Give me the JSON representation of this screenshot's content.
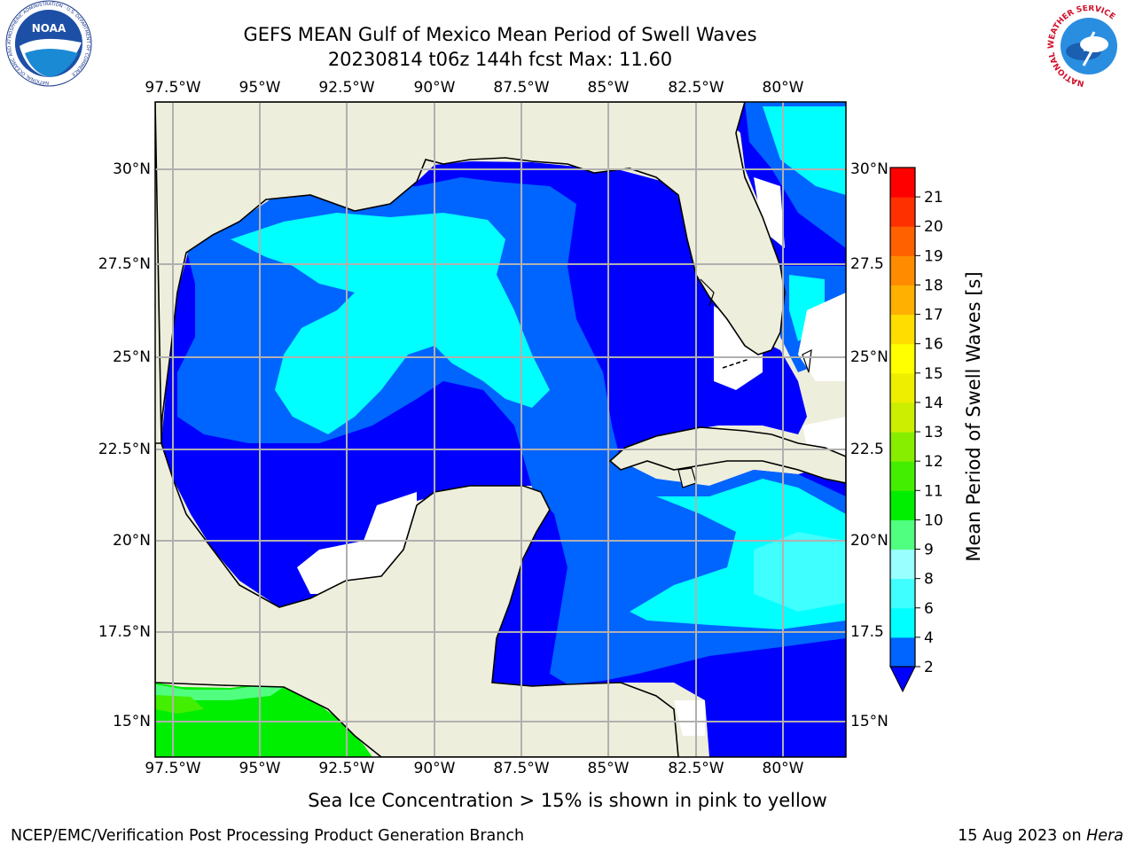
{
  "title": {
    "line1": "GEFS MEAN Gulf of Mexico Mean Period of Swell Waves",
    "line2": "20230814 t06z 144h fcst   Max: 11.60"
  },
  "map": {
    "lon_ticks": [
      "97.5°W",
      "95°W",
      "92.5°W",
      "90°W",
      "87.5°W",
      "85°W",
      "82.5°W",
      "80°W"
    ],
    "lat_ticks_left": [
      "30°N",
      "27.5°N",
      "25°N",
      "22.5°N",
      "20°N",
      "17.5°N",
      "15°N"
    ],
    "lat_ticks_right": [
      "30°N",
      "27.5",
      "25°N",
      "22.5",
      "20°N",
      "17.5",
      "15°N"
    ],
    "land_color": "#eeeedc",
    "grid_color": "#b0b0b0"
  },
  "colorbar": {
    "label": "Mean Period of Swell Waves [s]",
    "ticks": [
      "2",
      "4",
      "6",
      "8",
      "9",
      "10",
      "11",
      "12",
      "13",
      "14",
      "15",
      "16",
      "17",
      "18",
      "19",
      "20",
      "21"
    ],
    "colors": [
      "#0064ff",
      "#00ffff",
      "#40ffff",
      "#99ffff",
      "#50ff80",
      "#00ee00",
      "#44ee00",
      "#88ee00",
      "#ccee00",
      "#eeee00",
      "#ffff00",
      "#ffdd00",
      "#ffb000",
      "#ff8c00",
      "#ff6000",
      "#ff3000",
      "#ff0000"
    ],
    "under_color": "#0000ff"
  },
  "caption": "Sea Ice Concentration > 15% is shown in pink to yellow",
  "footer": {
    "left": "NCEP/EMC/Verification Post Processing Product Generation Branch",
    "right_date": "15 Aug 2023 on ",
    "right_host": "Hera"
  },
  "logos": {
    "noaa_text": "NOAA",
    "noaa_ring": "NATIONAL OCEANIC AND ATMOSPHERIC ADMINISTRATION · U.S. DEPARTMENT OF COMMERCE",
    "nws_ring": "NATIONAL WEATHER SERVICE"
  }
}
